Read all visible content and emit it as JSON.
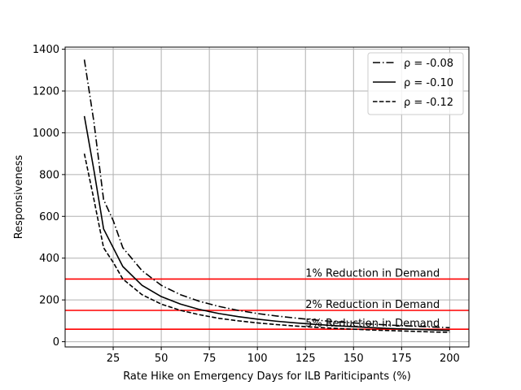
{
  "chart_data": {
    "type": "line",
    "title": "",
    "xlabel": "Rate Hike on Emergency Days for ILB Pariticipants (%)",
    "ylabel": "Responsiveness",
    "xlim": [
      0,
      210
    ],
    "ylim": [
      -25,
      1410
    ],
    "xticks": [
      25,
      50,
      75,
      100,
      125,
      150,
      175,
      200
    ],
    "yticks": [
      0,
      200,
      400,
      600,
      800,
      1000,
      1200,
      1400
    ],
    "grid": true,
    "legend_position": "top-right",
    "x": [
      10,
      15,
      20,
      25,
      30,
      40,
      50,
      60,
      70,
      80,
      90,
      100,
      110,
      120,
      130,
      140,
      150,
      160,
      170,
      180,
      190,
      200
    ],
    "series": [
      {
        "name": "ρ =  -0.08",
        "style": "dashdot",
        "color": "#000000",
        "values": [
          1350,
          1050,
          680,
          580,
          450,
          340,
          270,
          225,
          193,
          169,
          150,
          135,
          123,
          113,
          104,
          96,
          90,
          84,
          79,
          75,
          71,
          67
        ]
      },
      {
        "name": "ρ =  -0.10",
        "style": "solid",
        "color": "#000000",
        "values": [
          1080,
          820,
          540,
          450,
          360,
          270,
          216,
          180,
          154,
          135,
          120,
          108,
          98,
          90,
          83,
          77,
          72,
          67,
          63,
          60,
          57,
          54
        ]
      },
      {
        "name": "ρ =  -0.12",
        "style": "dashed",
        "color": "#000000",
        "values": [
          900,
          680,
          450,
          380,
          300,
          225,
          180,
          150,
          129,
          112,
          100,
          90,
          82,
          75,
          69,
          64,
          60,
          56,
          53,
          50,
          47,
          45
        ]
      }
    ],
    "hlines": [
      {
        "y": 300,
        "color": "#ff0000",
        "label": "1% Reduction in Demand"
      },
      {
        "y": 150,
        "color": "#ff0000",
        "label": "2% Reduction in Demand"
      },
      {
        "y": 60,
        "color": "#ff0000",
        "label": "5% Reduction in Demand"
      }
    ]
  }
}
